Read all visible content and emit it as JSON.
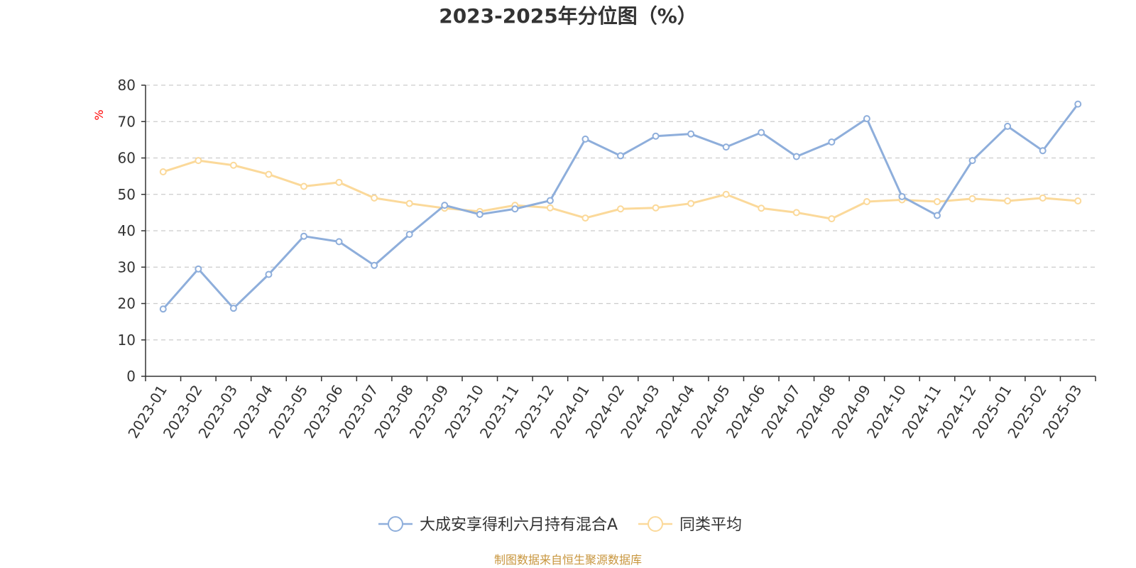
{
  "chart_data": {
    "type": "line",
    "title": "2023-2025年分位图（%）",
    "ylabel": "%",
    "xlabel": "",
    "ylim": [
      0,
      80
    ],
    "yticks": [
      0,
      10,
      20,
      30,
      40,
      50,
      60,
      70,
      80
    ],
    "grid": true,
    "legend_position": "bottom",
    "categories": [
      "2023-01",
      "2023-02",
      "2023-03",
      "2023-04",
      "2023-05",
      "2023-06",
      "2023-07",
      "2023-08",
      "2023-09",
      "2023-10",
      "2023-11",
      "2023-12",
      "2024-01",
      "2024-02",
      "2024-03",
      "2024-04",
      "2024-05",
      "2024-06",
      "2024-07",
      "2024-08",
      "2024-09",
      "2024-10",
      "2024-11",
      "2024-12",
      "2025-01",
      "2025-02",
      "2025-03"
    ],
    "series": [
      {
        "name": "大成安享得利六月持有混合A",
        "color": "#8eaedb",
        "values": [
          18.5,
          29.5,
          18.7,
          28,
          38.5,
          37,
          30.5,
          39,
          47,
          44.5,
          46,
          48.3,
          65.2,
          60.6,
          66,
          66.6,
          63,
          67,
          60.4,
          64.4,
          70.8,
          49.4,
          44.2,
          59.3,
          68.7,
          62,
          74.8
        ]
      },
      {
        "name": "同类平均",
        "color": "#fbd99a",
        "values": [
          56.2,
          59.3,
          58,
          55.5,
          52.2,
          53.3,
          49,
          47.5,
          46.2,
          45.3,
          47,
          46.3,
          43.5,
          46,
          46.3,
          47.5,
          50,
          46.2,
          45,
          43.3,
          48,
          48.5,
          48,
          48.8,
          48.2,
          49,
          48.2
        ]
      }
    ],
    "source_note": "制图数据来自恒生聚源数据库"
  },
  "colors": {
    "axis": "#333333",
    "grid": "#cccccc",
    "ylabel": "#ff0000",
    "source": "#c8963e"
  }
}
